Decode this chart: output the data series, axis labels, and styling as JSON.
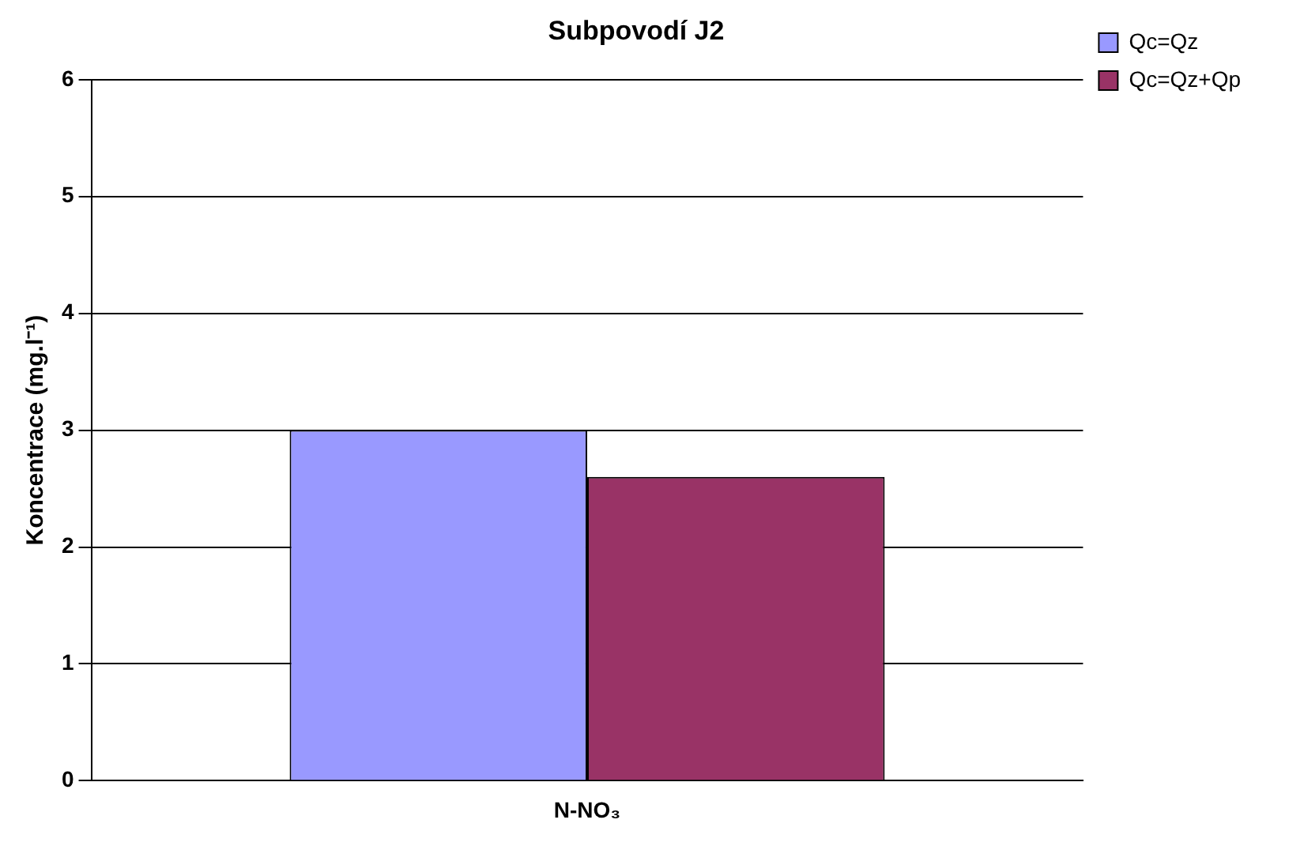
{
  "chart_data": {
    "type": "bar",
    "title": "Subpovodí J2",
    "ylabel": "Koncentrace (mg.l⁻¹)",
    "categories": [
      "N-NO₃"
    ],
    "series": [
      {
        "name": "Qc=Qz",
        "color": "#9999ff",
        "values": [
          3.0
        ]
      },
      {
        "name": "Qc=Qz+Qp",
        "color": "#993366",
        "values": [
          2.6
        ]
      }
    ],
    "ylim": [
      0,
      6
    ],
    "yticks": [
      0,
      1,
      2,
      3,
      4,
      5,
      6
    ],
    "grid": "y",
    "legend": "top right"
  }
}
